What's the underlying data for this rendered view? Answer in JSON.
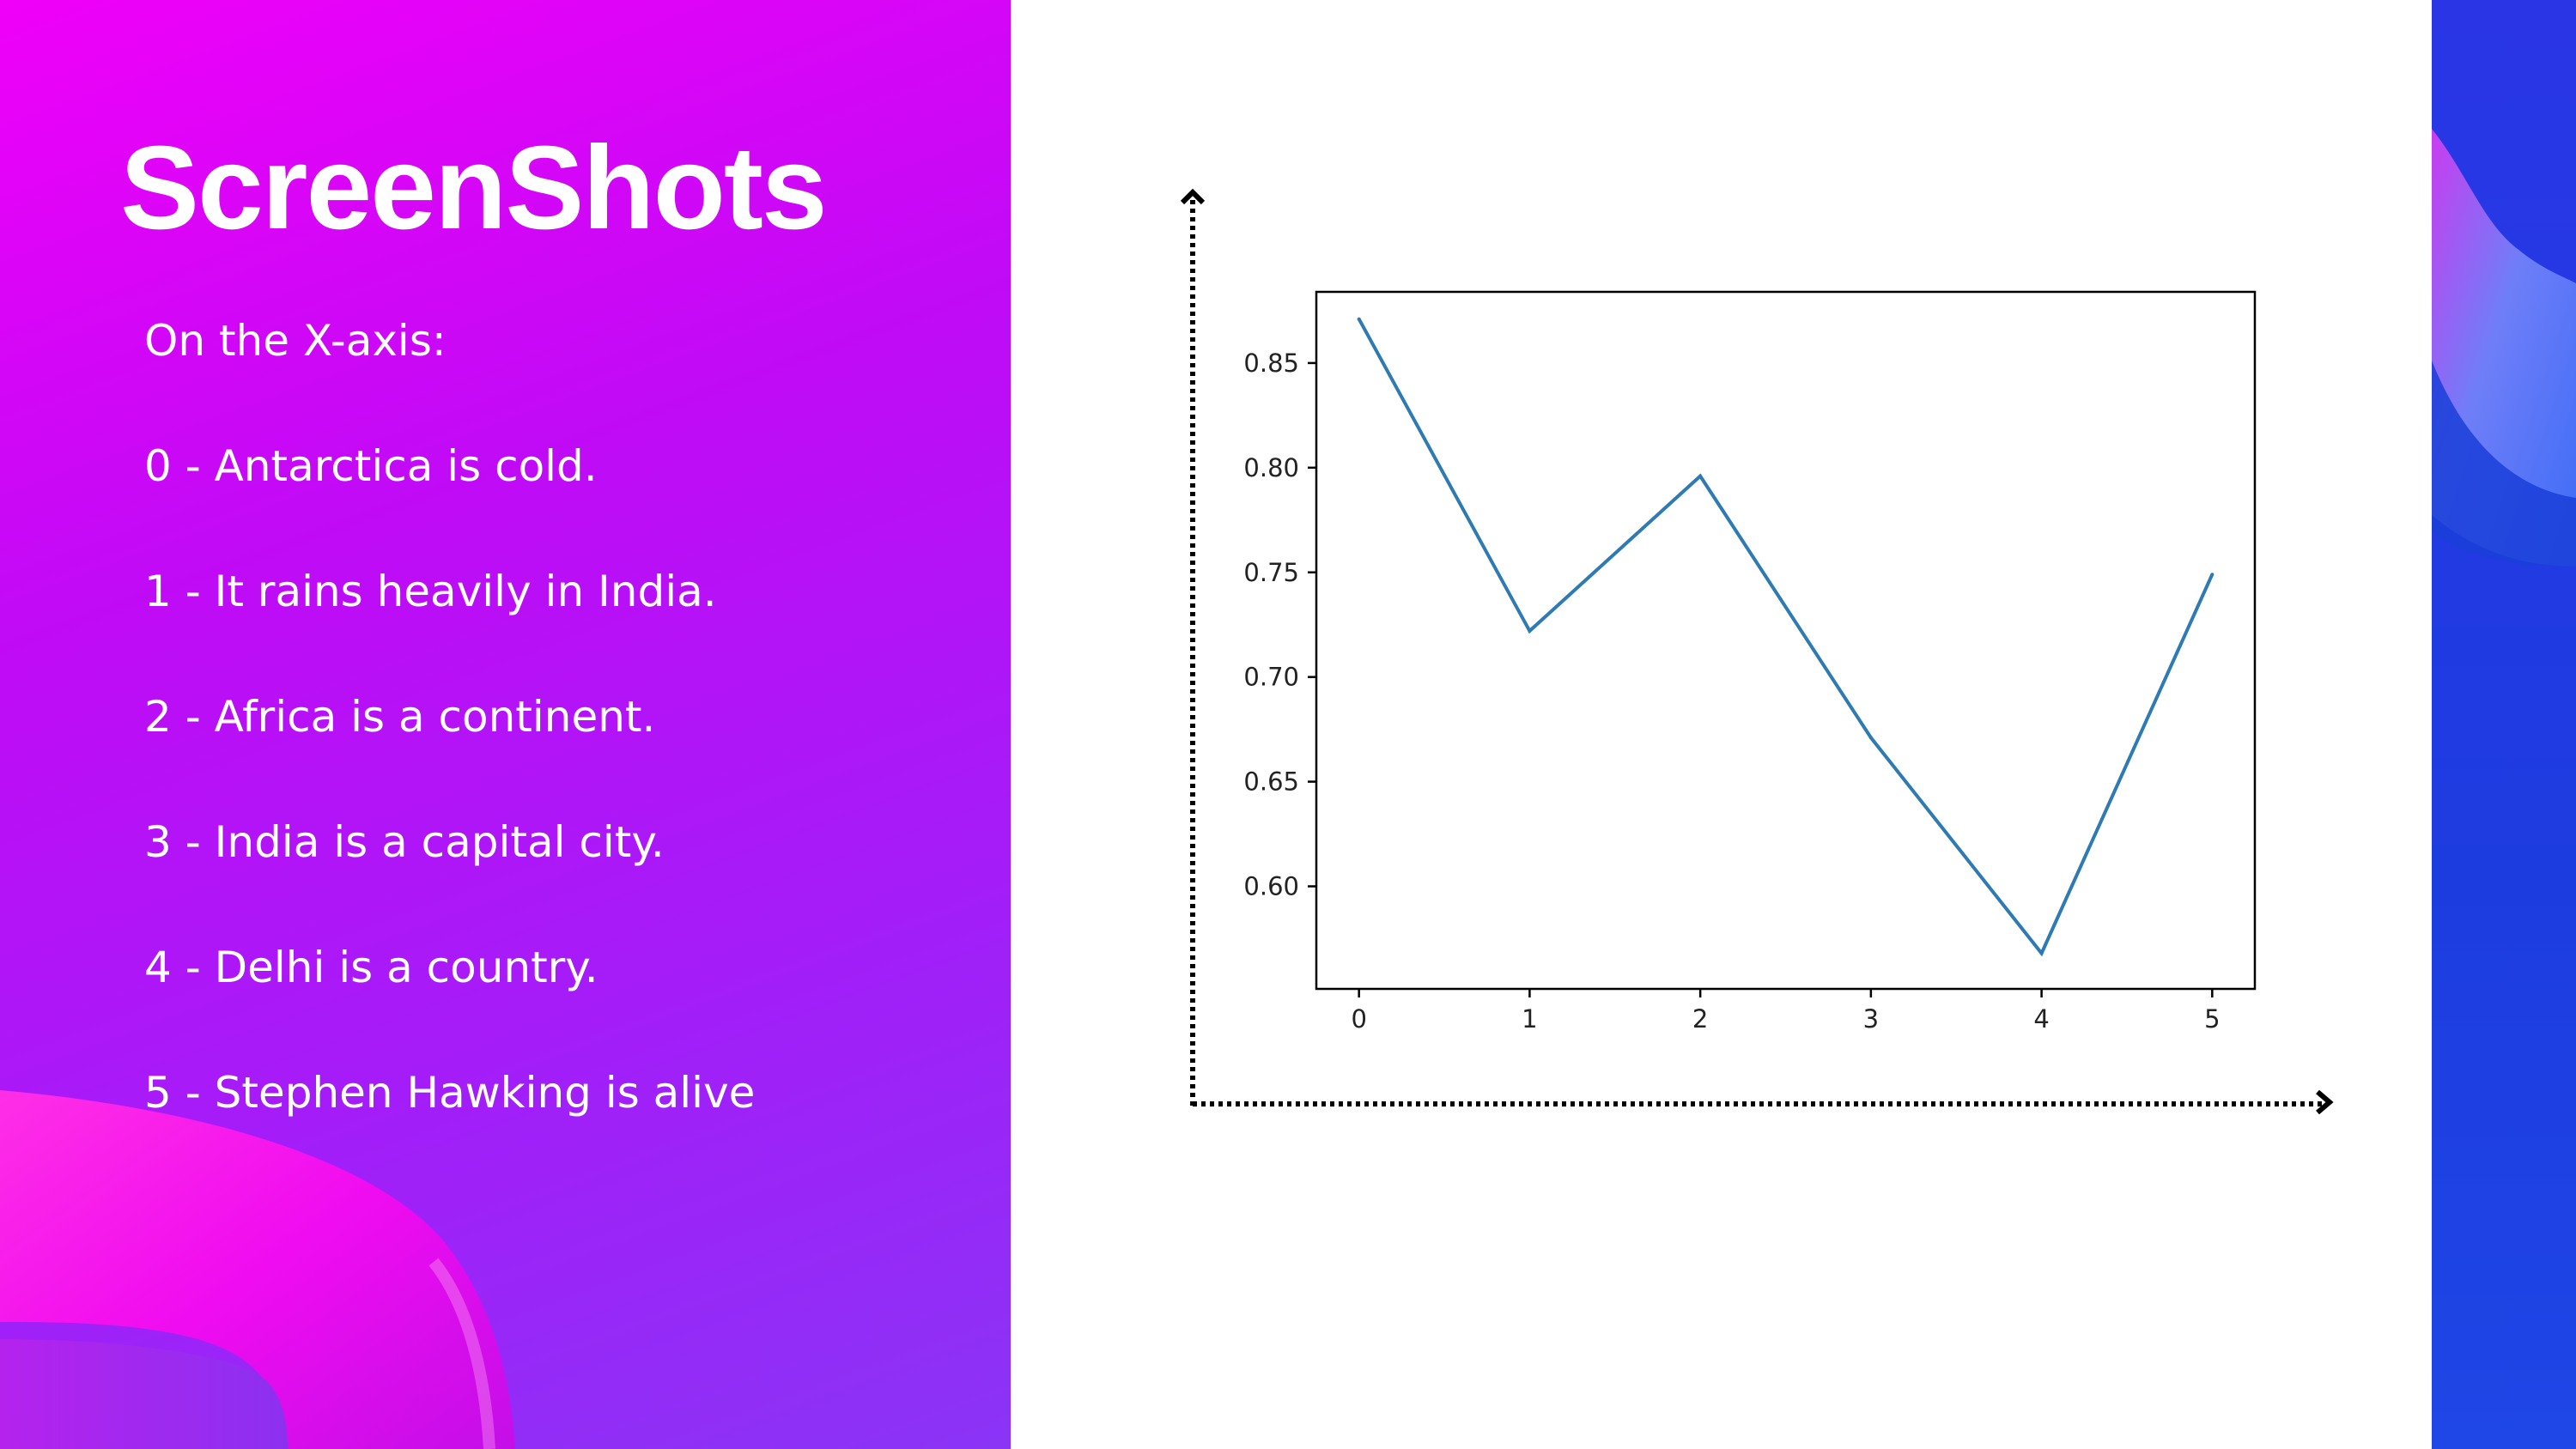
{
  "slide": {
    "title": "ScreenShots",
    "legend": [
      "On the X-axis:",
      "0 - Antarctica is cold.",
      "1  - It rains heavily in India.",
      "2 - Africa is a continent.",
      "3 - India is a capital city.",
      "4 - Delhi is a country.",
      "5 - Stephen Hawking is alive"
    ]
  },
  "colors": {
    "left_gradient": [
      "#f000f8",
      "#8a34f6"
    ],
    "right_panel": "#2a36e6",
    "line": "#2e7bb4",
    "frame": "#000000"
  },
  "chart_data": {
    "type": "line",
    "title": "",
    "xlabel": "",
    "ylabel": "",
    "x": [
      0,
      1,
      2,
      3,
      4,
      5
    ],
    "y": [
      0.871,
      0.722,
      0.796,
      0.671,
      0.568,
      0.749
    ],
    "xticks": [
      "0",
      "1",
      "2",
      "3",
      "4",
      "5"
    ],
    "yticks": [
      "0.60",
      "0.65",
      "0.70",
      "0.75",
      "0.80",
      "0.85"
    ],
    "ylim": [
      0.551,
      0.884
    ],
    "xlim": [
      -0.25,
      5.25
    ],
    "grid": false,
    "legend": "none",
    "icons": [
      "y-axis-arrow-icon",
      "x-axis-arrow-icon"
    ]
  }
}
